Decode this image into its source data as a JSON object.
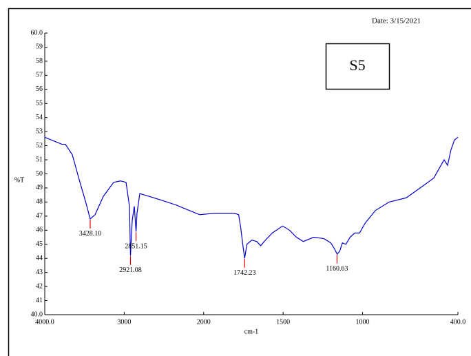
{
  "chart_data": {
    "type": "line",
    "date": "Date: 3/15/2021",
    "sample": "S5",
    "ylabel": "%T",
    "xlabel": "cm-1",
    "xlim": [
      4000,
      400
    ],
    "xbreak": 2000,
    "ylim": [
      40,
      60
    ],
    "xticks": [
      {
        "value": 4000,
        "label": "4000.0"
      },
      3000,
      2000,
      1500,
      1000,
      {
        "value": 400,
        "label": "400.0"
      }
    ],
    "yticks": [
      {
        "value": 40,
        "label": "40.0"
      },
      41,
      42,
      43,
      44,
      45,
      46,
      47,
      48,
      49,
      50,
      51,
      52,
      53,
      54,
      55,
      56,
      57,
      58,
      59,
      {
        "value": 60,
        "label": "60.0"
      }
    ],
    "x": [
      4000,
      3783,
      3740,
      3653,
      3567,
      3480,
      3428,
      3367,
      3263,
      3133,
      3047,
      2977,
      2934,
      2921,
      2899,
      2873,
      2851,
      2839,
      2804,
      2744,
      2570,
      2353,
      2180,
      2050,
      1935,
      1805,
      1780,
      1767,
      1754,
      1742,
      1728,
      1697,
      1667,
      1641,
      1611,
      1568,
      1503,
      1460,
      1416,
      1373,
      1308,
      1243,
      1200,
      1178,
      1160,
      1144,
      1127,
      1105,
      1079,
      1049,
      1019,
      984,
      919,
      833,
      725,
      638,
      552,
      487,
      465,
      444,
      422,
      400
    ],
    "series": [
      {
        "name": "S5",
        "color": "#0000cc",
        "values": [
          52.6,
          52.1,
          52.1,
          51.35,
          49.6,
          47.9,
          46.8,
          47.1,
          48.4,
          49.4,
          49.5,
          49.4,
          47.7,
          44.2,
          46.7,
          47.7,
          45.9,
          47.2,
          48.6,
          48.5,
          48.2,
          47.8,
          47.4,
          47.1,
          47.2,
          47.2,
          47.1,
          46.2,
          45.0,
          44.0,
          45.0,
          45.3,
          45.2,
          44.9,
          45.3,
          45.8,
          46.3,
          46.0,
          45.5,
          45.2,
          45.5,
          45.4,
          45.1,
          44.7,
          44.3,
          44.5,
          45.1,
          45.0,
          45.5,
          45.8,
          45.8,
          46.5,
          47.4,
          48.0,
          48.3,
          49.0,
          49.7,
          51.0,
          50.6,
          51.7,
          52.4,
          52.6
        ]
      }
    ],
    "annotations": [
      {
        "label": "3428.10",
        "x": 3428.1
      },
      {
        "label": "2921.08",
        "x": 2921.08
      },
      {
        "label": "2851.15",
        "x": 2851.15
      },
      {
        "label": "1742.23",
        "x": 1742.23
      },
      {
        "label": "1160.63",
        "x": 1160.63
      }
    ]
  }
}
